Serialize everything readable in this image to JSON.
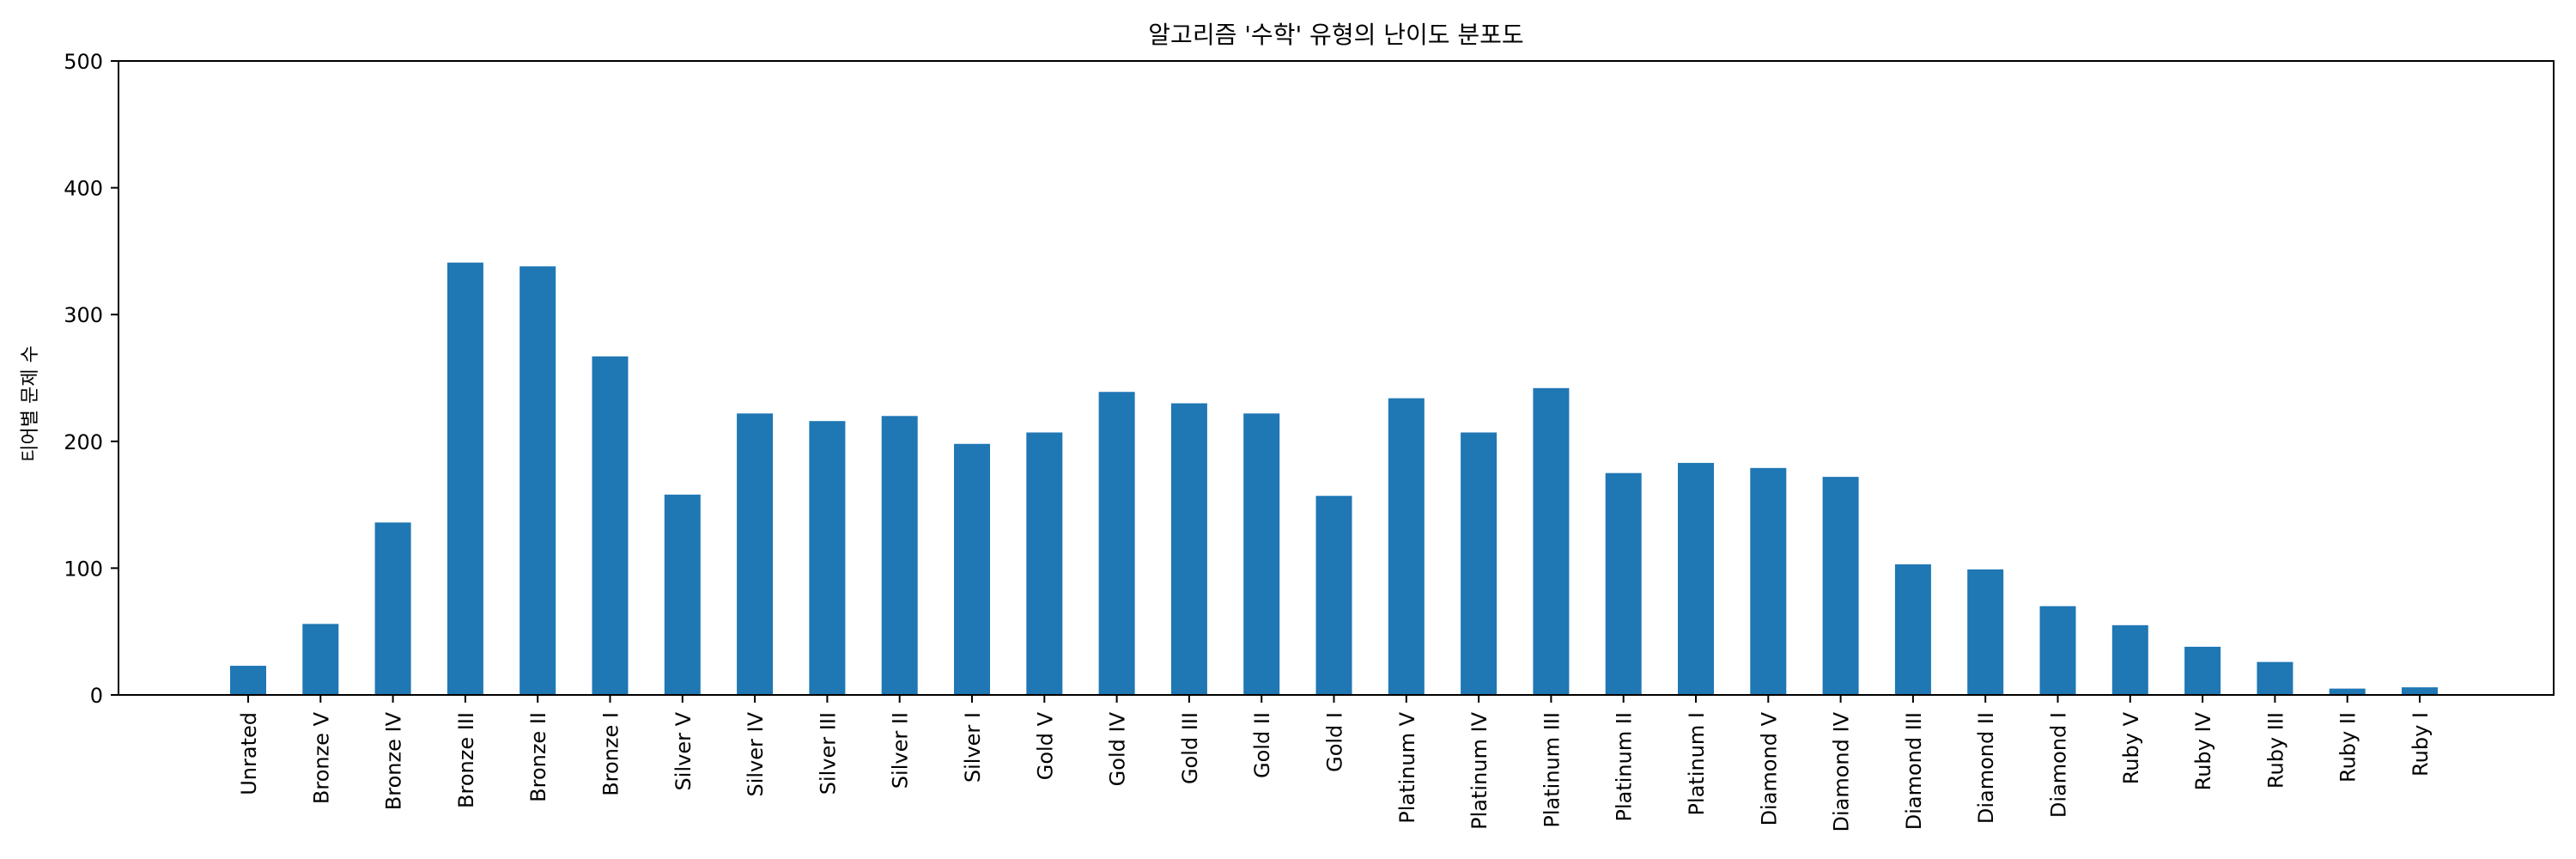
{
  "chart_data": {
    "type": "bar",
    "title": "알고리즘 '수학' 유형의 난이도 분포도",
    "xlabel": "",
    "ylabel": "티어별 문제 수",
    "ylim": [
      0,
      500
    ],
    "yticks": [
      0,
      100,
      200,
      300,
      400,
      500
    ],
    "grid": false,
    "bar_color": "#1f77b4",
    "categories": [
      "Unrated",
      "Bronze V",
      "Bronze IV",
      "Bronze III",
      "Bronze II",
      "Bronze I",
      "Silver V",
      "Silver IV",
      "Silver III",
      "Silver II",
      "Silver I",
      "Gold V",
      "Gold IV",
      "Gold III",
      "Gold II",
      "Gold I",
      "Platinum V",
      "Platinum IV",
      "Platinum III",
      "Platinum II",
      "Platinum I",
      "Diamond V",
      "Diamond IV",
      "Diamond III",
      "Diamond II",
      "Diamond I",
      "Ruby V",
      "Ruby IV",
      "Ruby III",
      "Ruby II",
      "Ruby I"
    ],
    "values": [
      23,
      56,
      136,
      341,
      338,
      267,
      158,
      222,
      216,
      220,
      198,
      207,
      239,
      230,
      222,
      157,
      234,
      207,
      242,
      175,
      183,
      179,
      172,
      103,
      99,
      70,
      55,
      38,
      26,
      5,
      6
    ]
  }
}
